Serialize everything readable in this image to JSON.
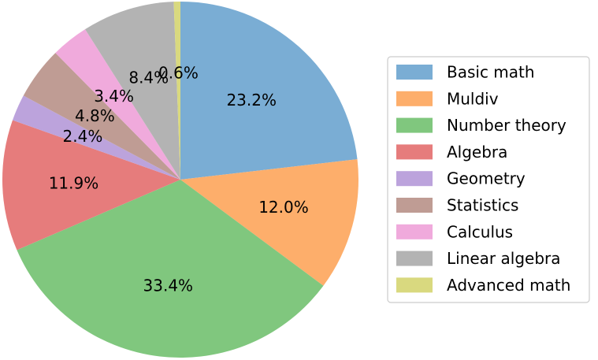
{
  "chart_data": {
    "type": "pie",
    "categories": [
      "Basic math",
      "Muldiv",
      "Number theory",
      "Algebra",
      "Geometry",
      "Statistics",
      "Calculus",
      "Linear algebra",
      "Advanced math"
    ],
    "values": [
      23.2,
      12.0,
      33.4,
      11.9,
      2.4,
      4.8,
      3.4,
      8.4,
      0.6
    ],
    "labels": [
      "23.2%",
      "12.0%",
      "33.4%",
      "11.9%",
      "2.4%",
      "4.8%",
      "3.4%",
      "8.4%",
      "0.6%"
    ],
    "colors": [
      "#7aadd4",
      "#fdae6b",
      "#80c77e",
      "#e67c7c",
      "#bca3dc",
      "#bf9c94",
      "#f0aadc",
      "#b3b3b3",
      "#d9d97f"
    ],
    "start_angle": "top",
    "direction": "clockwise",
    "legend_position": "right"
  }
}
